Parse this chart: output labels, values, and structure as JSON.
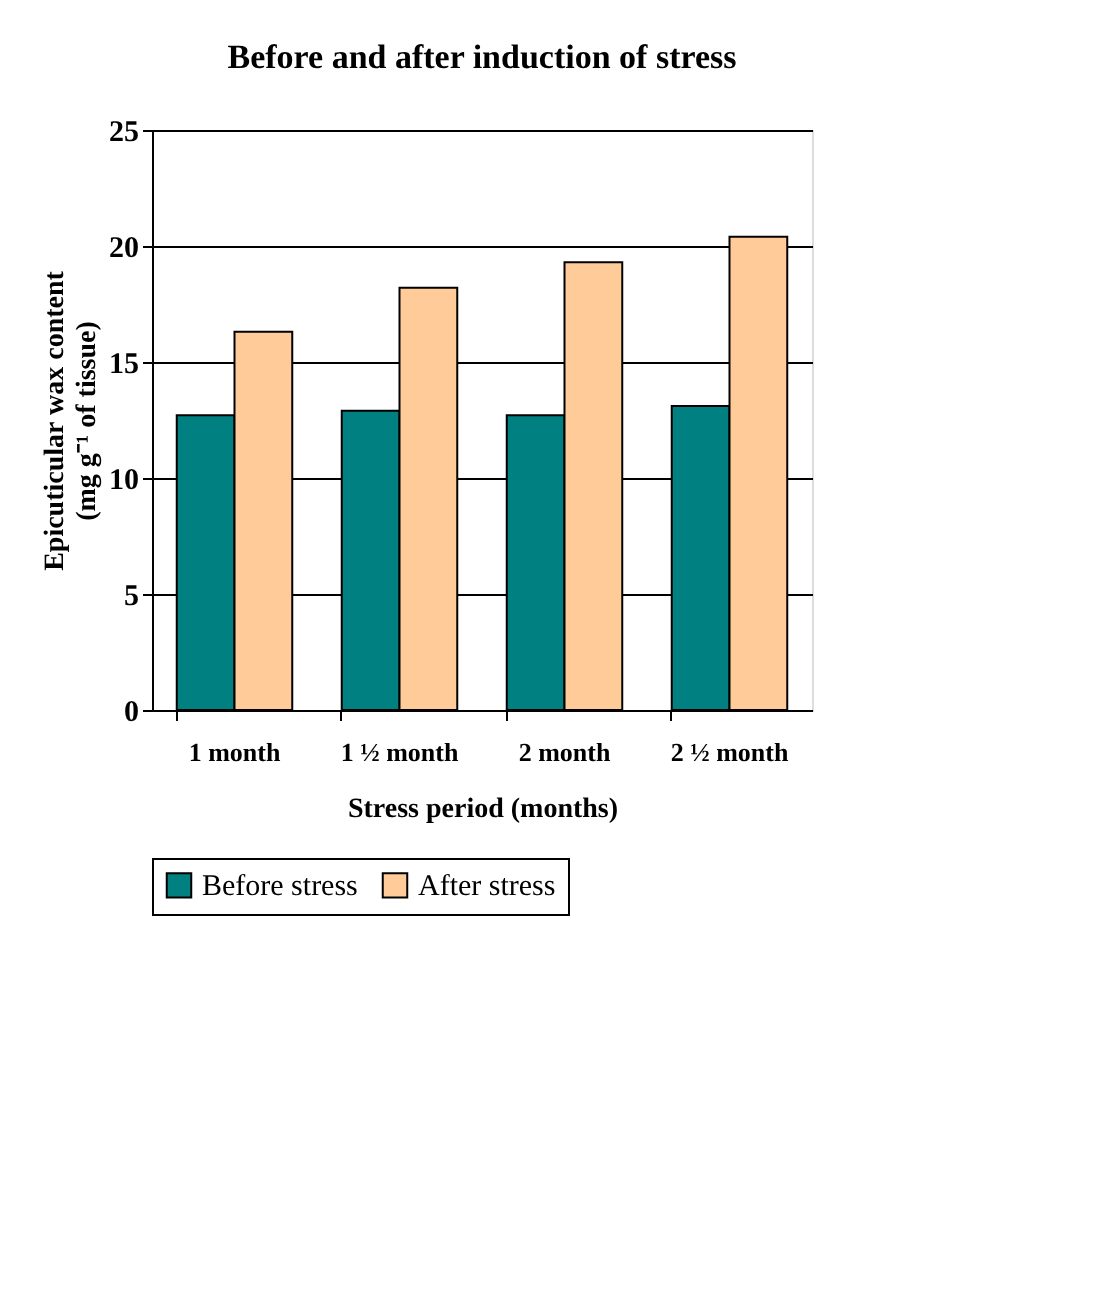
{
  "chart_data": {
    "type": "bar",
    "title": "Before and after induction of stress",
    "xlabel": "Stress period (months)",
    "ylabel": "Epicuticular wax content (mg g⁻¹ of tissue)",
    "categories": [
      "1 month",
      "1 ½ month",
      "2 month",
      "2 ½ month"
    ],
    "series": [
      {
        "name": "Before stress",
        "color": "#008080",
        "values": [
          12.7,
          12.9,
          12.7,
          13.1
        ]
      },
      {
        "name": "After stress",
        "color": "#ffcc99",
        "values": [
          16.3,
          18.2,
          19.3,
          20.4
        ]
      }
    ],
    "ylim": [
      0,
      25
    ],
    "yticks": [
      0,
      5,
      10,
      15,
      20,
      25
    ],
    "grid": "y",
    "legend": "bottom"
  }
}
